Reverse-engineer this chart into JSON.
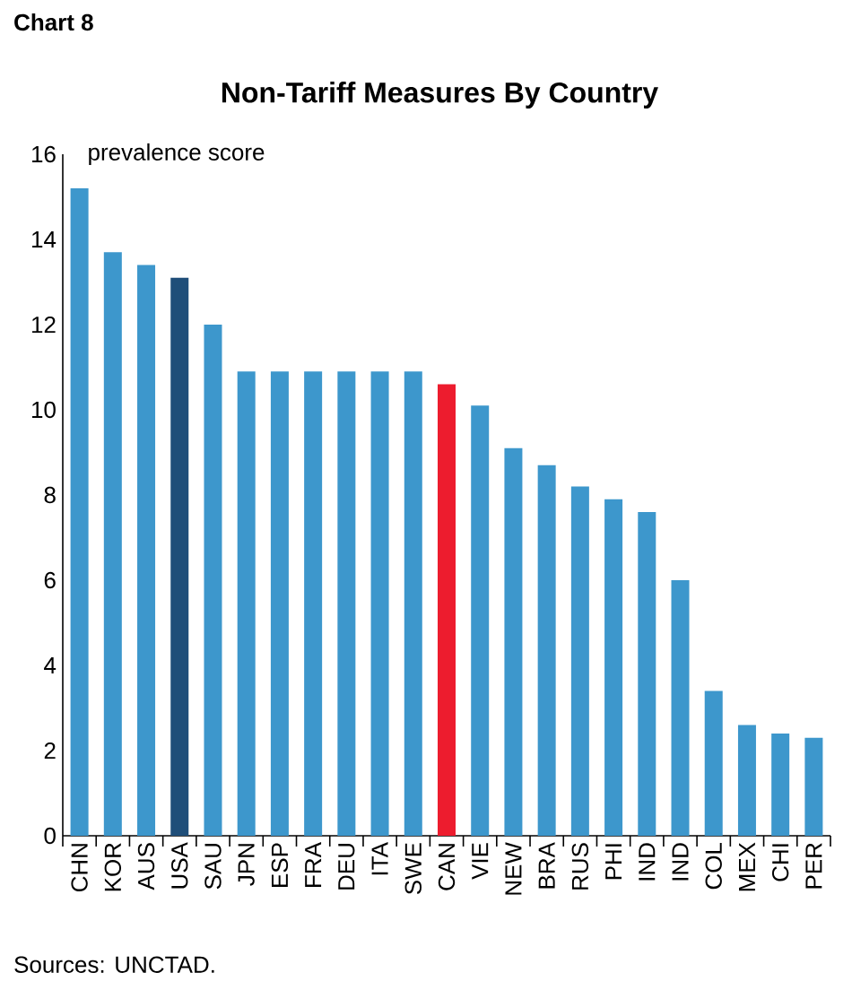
{
  "chart_data": {
    "type": "bar",
    "title": "Non-Tariff Measures By Country",
    "ylabel": "prevalence score",
    "annotations": [
      "Chart 8",
      "Sources: UNCTAD."
    ],
    "categories": [
      "CHN",
      "KOR",
      "AUS",
      "USA",
      "SAU",
      "JPN",
      "ESP",
      "FRA",
      "DEU",
      "ITA",
      "SWE",
      "CAN",
      "VIE",
      "NEW",
      "BRA",
      "RUS",
      "PHI",
      "IND",
      "IND",
      "COL",
      "MEX",
      "CHI",
      "PER"
    ],
    "values": [
      15.2,
      13.7,
      13.4,
      13.1,
      12.0,
      10.9,
      10.9,
      10.9,
      10.9,
      10.9,
      10.9,
      10.6,
      10.1,
      9.1,
      8.7,
      8.2,
      7.9,
      7.6,
      6.0,
      3.4,
      2.6,
      2.4,
      2.3
    ],
    "colors": [
      "#3d97cc",
      "#3d97cc",
      "#3d97cc",
      "#1f4e79",
      "#3d97cc",
      "#3d97cc",
      "#3d97cc",
      "#3d97cc",
      "#3d97cc",
      "#3d97cc",
      "#3d97cc",
      "#ed1c2e",
      "#3d97cc",
      "#3d97cc",
      "#3d97cc",
      "#3d97cc",
      "#3d97cc",
      "#3d97cc",
      "#3d97cc",
      "#3d97cc",
      "#3d97cc",
      "#3d97cc",
      "#3d97cc"
    ],
    "ylim": [
      0,
      16
    ],
    "yticks": [
      0,
      2,
      4,
      6,
      8,
      10,
      12,
      14,
      16
    ],
    "grid": false
  }
}
